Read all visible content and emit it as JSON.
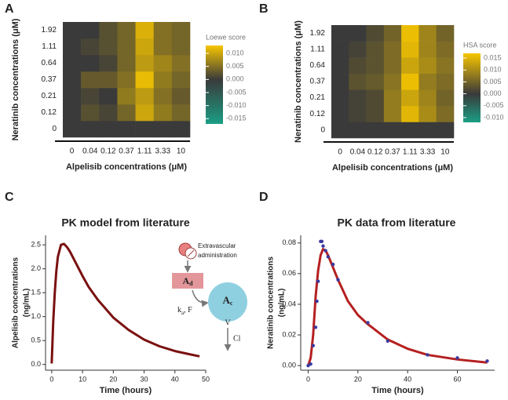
{
  "chart_data": [
    {
      "type": "heatmap",
      "panel_label": "A",
      "x_label": "Alpelisib concentrations (μM)",
      "y_label": "Neratinib concentrations (μM)",
      "x_categories": [
        "0",
        "0.04",
        "0.12",
        "0.37",
        "1.11",
        "3.33",
        "10"
      ],
      "y_categories": [
        "0",
        "0.12",
        "0.21",
        "0.37",
        "0.64",
        "1.11",
        "1.92"
      ],
      "values": [
        [
          0,
          0,
          0,
          0,
          0,
          0,
          0
        ],
        [
          0,
          0.002,
          0.001,
          0.004,
          0.01,
          0.006,
          0.004
        ],
        [
          0,
          0.001,
          0.0,
          0.006,
          0.009,
          0.005,
          0.003
        ],
        [
          0,
          0.003,
          0.003,
          0.005,
          0.012,
          0.006,
          0.004
        ],
        [
          0,
          0.0,
          0.001,
          0.004,
          0.009,
          0.007,
          0.005
        ],
        [
          0,
          0.001,
          0.002,
          0.004,
          0.01,
          0.005,
          0.004
        ],
        [
          0,
          0.0,
          0.002,
          0.004,
          0.011,
          0.005,
          0.004
        ]
      ],
      "legend_title": "Loewe score",
      "zlim": [
        -0.017,
        0.013
      ],
      "zticks": [
        {
          "value": 0.01,
          "label": "0.010"
        },
        0.005,
        {
          "value": 0,
          "label": "0.000"
        },
        -0.005,
        {
          "value": -0.01,
          "label": "-0.010"
        },
        -0.015
      ],
      "colors": [
        "#1b9e85",
        "#3a3a3a",
        "#f7c600"
      ]
    },
    {
      "type": "heatmap",
      "panel_label": "B",
      "x_label": "Alpelisib concentrations (μM)",
      "y_label": "Neratinib concentrations (μM)",
      "x_categories": [
        "0",
        "0.04",
        "0.12",
        "0.37",
        "1.11",
        "3.33",
        "10"
      ],
      "y_categories": [
        "0",
        "0.12",
        "0.21",
        "0.37",
        "0.64",
        "1.11",
        "1.92"
      ],
      "values": [
        [
          0,
          0,
          0,
          0,
          0,
          0,
          0
        ],
        [
          0,
          0.001,
          0.002,
          0.008,
          0.015,
          0.01,
          0.006
        ],
        [
          0,
          0.001,
          0.002,
          0.008,
          0.013,
          0.009,
          0.005
        ],
        [
          0,
          0.003,
          0.004,
          0.007,
          0.016,
          0.008,
          0.006
        ],
        [
          0,
          0.002,
          0.003,
          0.006,
          0.013,
          0.01,
          0.007
        ],
        [
          0,
          0.001,
          0.003,
          0.006,
          0.015,
          0.009,
          0.006
        ],
        [
          0,
          0.0,
          0.002,
          0.005,
          0.016,
          0.009,
          0.005
        ]
      ],
      "legend_title": "HSA score",
      "zlim": [
        -0.012,
        0.017
      ],
      "zticks": [
        0.015,
        {
          "value": 0.01,
          "label": "0.010"
        },
        0.005,
        {
          "value": 0,
          "label": "0.000"
        },
        -0.005,
        {
          "value": -0.01,
          "label": "-0.010"
        }
      ],
      "colors": [
        "#1b9e85",
        "#3a3a3a",
        "#f7c600"
      ]
    },
    {
      "type": "line",
      "panel_label": "C",
      "title": "PK model from literature",
      "x_label": "Time (hours)",
      "y_label": [
        "Alpelisib concentrations",
        "(ng/mL)"
      ],
      "x": [
        0,
        0.5,
        1,
        1.5,
        2,
        3,
        4,
        5,
        6,
        8,
        10,
        12,
        15,
        20,
        25,
        30,
        35,
        40,
        45,
        48
      ],
      "values": [
        0.02,
        0.9,
        1.5,
        1.95,
        2.25,
        2.5,
        2.52,
        2.45,
        2.35,
        2.1,
        1.85,
        1.62,
        1.35,
        0.98,
        0.72,
        0.52,
        0.38,
        0.28,
        0.21,
        0.17
      ],
      "color": "#7a1010",
      "xlim": [
        -2,
        50
      ],
      "xticks": [
        0,
        10,
        20,
        30,
        40,
        50
      ],
      "ylim": [
        -0.12,
        2.7
      ],
      "yticks": [
        {
          "value": 0,
          "label": "0.0"
        },
        0.5,
        {
          "value": 1,
          "label": "1.0"
        },
        1.5,
        {
          "value": 2,
          "label": "2.0"
        },
        2.5
      ],
      "diagram": {
        "dose": [
          "Extravascular",
          "administration"
        ],
        "depot": {
          "main": "A",
          "sub": "d"
        },
        "central": {
          "main": "A",
          "sub": "c"
        },
        "absorption": {
          "main": "k",
          "sub": "a",
          "rest": ", F"
        },
        "volume": "V",
        "clearance": "Cl"
      }
    },
    {
      "type": "line",
      "panel_label": "D",
      "title": "PK data from literature",
      "x_label": "Time (hours)",
      "y_label": [
        "Neratinib concentrations",
        "(ng/mL)"
      ],
      "series": [
        {
          "type": "line",
          "color": "#b52020",
          "x": [
            0,
            1,
            2,
            3,
            4,
            5,
            6,
            7,
            8,
            10,
            12,
            16,
            20,
            24,
            32,
            40,
            48,
            60,
            72
          ],
          "values": [
            0,
            0.005,
            0.02,
            0.045,
            0.062,
            0.072,
            0.076,
            0.075,
            0.072,
            0.064,
            0.056,
            0.042,
            0.033,
            0.027,
            0.017,
            0.011,
            0.007,
            0.004,
            0.002
          ]
        },
        {
          "type": "scatter",
          "color": "#3a3aa0",
          "x": [
            0,
            1,
            2,
            3,
            3.5,
            4,
            5,
            5.5,
            6,
            7,
            8,
            10,
            12,
            24,
            32,
            48,
            60,
            72
          ],
          "values": [
            0,
            0.001,
            0.013,
            0.025,
            0.042,
            0.055,
            0.081,
            0.081,
            0.078,
            0.075,
            0.071,
            0.066,
            0.056,
            0.028,
            0.016,
            0.007,
            0.005,
            0.003
          ]
        }
      ],
      "xlim": [
        -3,
        75
      ],
      "xticks": [
        0,
        20,
        40,
        60
      ],
      "ylim": [
        -0.003,
        0.085
      ],
      "yticks": [
        {
          "value": 0,
          "label": "0.00"
        },
        0.02,
        0.04,
        0.06,
        0.08
      ]
    }
  ]
}
